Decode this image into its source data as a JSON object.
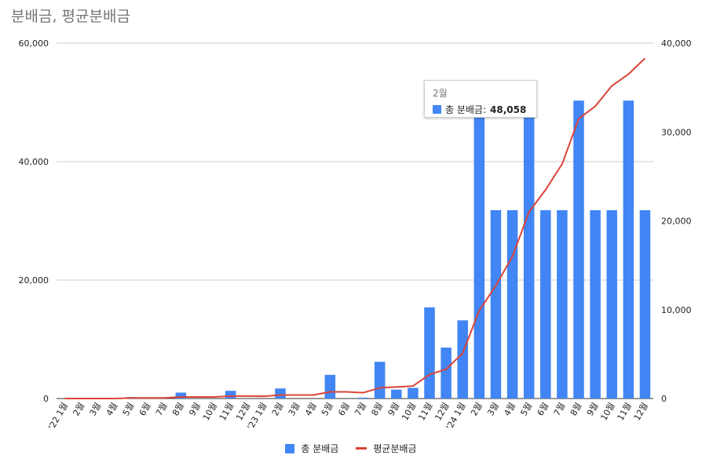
{
  "title": "분배금, 평균분배금",
  "colors": {
    "bar": "#4285f4",
    "line": "#db4437",
    "grid": "#cccccc"
  },
  "tooltip": {
    "title": "2월",
    "label": "총 분배금",
    "separator": ":",
    "value": "48,058"
  },
  "chart_data": {
    "type": "bar",
    "title": "분배금, 평균분배금",
    "categories": [
      "'22 1월",
      "2월",
      "3월",
      "4월",
      "5월",
      "6월",
      "7월",
      "8월",
      "9월",
      "10월",
      "11월",
      "12월",
      "'23 1월",
      "2월",
      "3월",
      "4월",
      "5월",
      "6월",
      "7월",
      "8월",
      "9월",
      "10월",
      "11월",
      "12월",
      "'24 1월",
      "2월",
      "3월",
      "4월",
      "5월",
      "6월",
      "7월",
      "8월",
      "9월",
      "10월",
      "11월",
      "12월"
    ],
    "y_left": {
      "min": 0,
      "max": 60000,
      "ticks": [
        "0",
        "20,000",
        "40,000",
        "60,000"
      ]
    },
    "y_right": {
      "min": 0,
      "max": 40000,
      "ticks": [
        "0",
        "10,000",
        "20,000",
        "30,000",
        "40,000"
      ]
    },
    "grid": true,
    "legend_position": "bottom",
    "series": [
      {
        "name": "총 분배금",
        "type": "bar",
        "axis": "left",
        "values": [
          0,
          0,
          0,
          0,
          250,
          0,
          0,
          1000,
          0,
          0,
          1300,
          0,
          0,
          1700,
          0,
          0,
          4000,
          0,
          150,
          6200,
          1500,
          1800,
          15400,
          8600,
          13200,
          48058,
          31800,
          31800,
          48058,
          31800,
          31800,
          50300,
          31800,
          31800,
          50300,
          31800
        ]
      },
      {
        "name": "평균분배금",
        "type": "line",
        "axis": "right",
        "values": [
          0,
          0,
          0,
          0,
          60,
          60,
          60,
          180,
          180,
          180,
          270,
          270,
          260,
          400,
          400,
          400,
          750,
          750,
          650,
          1200,
          1300,
          1400,
          2700,
          3300,
          5100,
          9900,
          12700,
          16000,
          21000,
          23500,
          26400,
          31500,
          32900,
          35200,
          36500,
          38300
        ]
      }
    ]
  }
}
